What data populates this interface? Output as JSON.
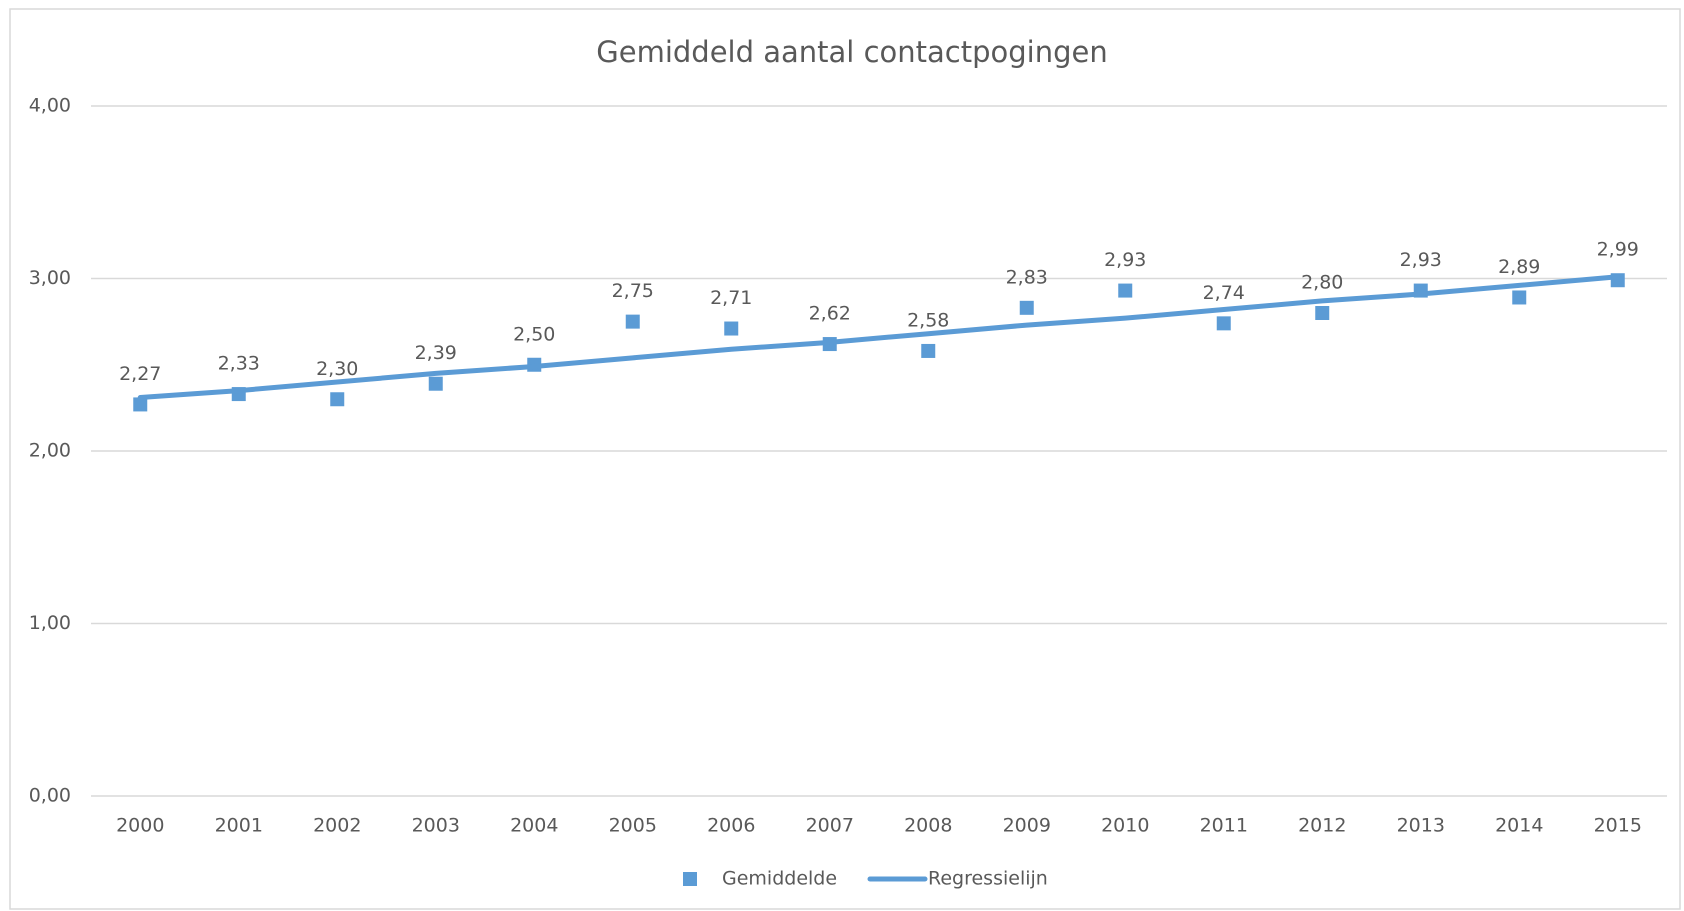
{
  "chart_data": {
    "type": "line",
    "title": "Gemiddeld aantal contactpogingen",
    "categories": [
      "2000",
      "2001",
      "2002",
      "2003",
      "2004",
      "2005",
      "2006",
      "2007",
      "2008",
      "2009",
      "2010",
      "2011",
      "2012",
      "2013",
      "2014",
      "2015"
    ],
    "series": [
      {
        "name": "Gemiddelde",
        "color": "#5b9bd5",
        "marker": "square",
        "line": false,
        "values": [
          2.27,
          2.33,
          2.3,
          2.39,
          2.5,
          2.75,
          2.71,
          2.62,
          2.58,
          2.83,
          2.93,
          2.74,
          2.8,
          2.93,
          2.89,
          2.99
        ],
        "value_labels": [
          "2,27",
          "2,33",
          "2,30",
          "2,39",
          "2,50",
          "2,75",
          "2,71",
          "2,62",
          "2,58",
          "2,83",
          "2,93",
          "2,74",
          "2,80",
          "2,93",
          "2,89",
          "2,99"
        ]
      },
      {
        "name": "Regressielijn",
        "color": "#5b9bd5",
        "marker": "none",
        "line": true,
        "values": [
          2.31,
          2.35,
          2.4,
          2.45,
          2.49,
          2.54,
          2.59,
          2.63,
          2.68,
          2.73,
          2.77,
          2.82,
          2.87,
          2.91,
          2.96,
          3.01
        ]
      }
    ],
    "ylim": [
      0,
      4
    ],
    "yticks": [
      {
        "value": 0,
        "label": "0,00"
      },
      {
        "value": 1,
        "label": "1,00"
      },
      {
        "value": 2,
        "label": "2,00"
      },
      {
        "value": 3,
        "label": "3,00"
      },
      {
        "value": 4,
        "label": "4,00"
      }
    ],
    "grid": true,
    "legend": "bottom"
  }
}
